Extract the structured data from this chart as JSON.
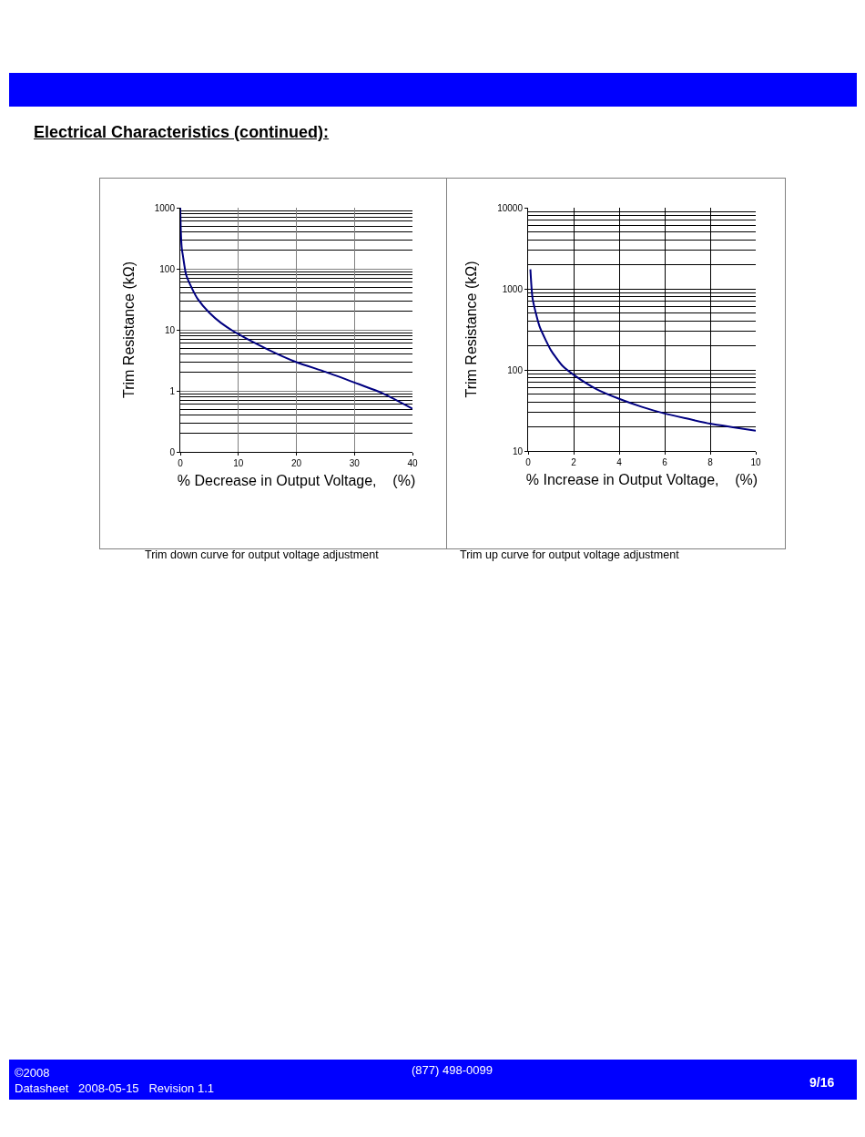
{
  "chart_data": [
    {
      "type": "line",
      "annotations": [
        "Electrical Characteristics (continued):",
        "Trim down curve for output voltage adjustment"
      ],
      "xlabel": "% Decrease in Output Voltage,    (%)",
      "ylabel": "Trim Resistance (kΩ)",
      "log": "y",
      "grid": true,
      "marker": "none",
      "line_style": "solid",
      "x": [
        0,
        0.1,
        0.25,
        0.47,
        1,
        2,
        3,
        5,
        7,
        10,
        15,
        20,
        25,
        30,
        35,
        40
      ],
      "series": [
        {
          "color": "#000080",
          "values": [
            1000,
            400,
            220,
            160,
            80,
            48,
            32,
            19,
            13,
            8.5,
            4.8,
            2.95,
            2.05,
            1.37,
            0.9,
            0.51
          ]
        }
      ],
      "xlim": [
        0,
        40
      ],
      "xticks": [
        0,
        10,
        20,
        30,
        40
      ],
      "ylim": [
        0.1,
        1000
      ],
      "yticks": [
        {
          "value": 0.1,
          "label": "0"
        },
        1,
        10,
        100,
        1000
      ]
    },
    {
      "type": "line",
      "annotations": [
        "Trim up curve for output voltage adjustment",
        "©2008",
        "Datasheet   2008-05-15   Revision 1.1",
        "(877) 498-0099",
        "9/16"
      ],
      "xlabel": "% Increase in Output Voltage,    (%)",
      "ylabel": "Trim Resistance (kΩ)",
      "log": "y",
      "grid": true,
      "marker": "none",
      "line_style": "solid",
      "x": [
        0.1,
        0.2,
        0.5,
        0.8,
        1,
        1.5,
        2,
        3,
        4,
        5,
        6,
        7,
        8,
        9,
        10
      ],
      "series": [
        {
          "color": "#000080",
          "values": [
            1740,
            750,
            345,
            225,
            175,
            113,
            87,
            58,
            44,
            35,
            29,
            25,
            21.7,
            19.6,
            17.8
          ]
        }
      ],
      "xlim": [
        0,
        10
      ],
      "xticks": [
        0,
        2,
        4,
        6,
        8,
        10
      ],
      "ylim": [
        10,
        10000
      ],
      "yticks": [
        10,
        100,
        1000,
        10000
      ]
    }
  ]
}
